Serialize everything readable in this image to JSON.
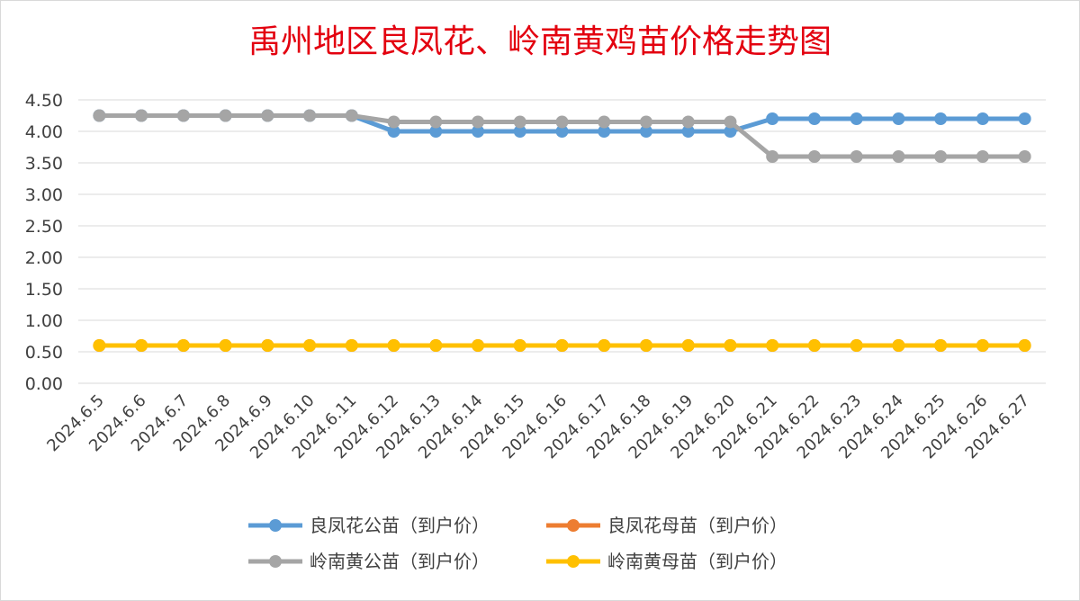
{
  "chart_data": {
    "type": "line",
    "title": "禹州地区良凤花、岭南黄鸡苗价格走势图",
    "categories": [
      "2024.6.5",
      "2024.6.6",
      "2024.6.7",
      "2024.6.8",
      "2024.6.9",
      "2024.6.10",
      "2024.6.11",
      "2024.6.12",
      "2024.6.13",
      "2024.6.14",
      "2024.6.15",
      "2024.6.16",
      "2024.6.17",
      "2024.6.18",
      "2024.6.19",
      "2024.6.20",
      "2024.6.21",
      "2024.6.22",
      "2024.6.23",
      "2024.6.24",
      "2024.6.25",
      "2024.6.26",
      "2024.6.27"
    ],
    "ylim": [
      0,
      4.5
    ],
    "yticks": [
      "0.00",
      "0.50",
      "1.00",
      "1.50",
      "2.00",
      "2.50",
      "3.00",
      "3.50",
      "4.00",
      "4.50"
    ],
    "grid": true,
    "legend_position": "bottom",
    "series": [
      {
        "name": "良凤花公苗（到户价）",
        "color": "#5b9bd5",
        "values": [
          4.25,
          4.25,
          4.25,
          4.25,
          4.25,
          4.25,
          4.25,
          4.0,
          4.0,
          4.0,
          4.0,
          4.0,
          4.0,
          4.0,
          4.0,
          4.0,
          4.2,
          4.2,
          4.2,
          4.2,
          4.2,
          4.2,
          4.2
        ]
      },
      {
        "name": "良凤花母苗（到户价）",
        "color": "#ed7d31",
        "values": [
          0.6,
          0.6,
          0.6,
          0.6,
          0.6,
          0.6,
          0.6,
          0.6,
          0.6,
          0.6,
          0.6,
          0.6,
          0.6,
          0.6,
          0.6,
          0.6,
          0.6,
          0.6,
          0.6,
          0.6,
          0.6,
          0.6,
          0.6
        ]
      },
      {
        "name": "岭南黄公苗（到户价）",
        "color": "#a5a5a5",
        "values": [
          4.25,
          4.25,
          4.25,
          4.25,
          4.25,
          4.25,
          4.25,
          4.15,
          4.15,
          4.15,
          4.15,
          4.15,
          4.15,
          4.15,
          4.15,
          4.15,
          3.6,
          3.6,
          3.6,
          3.6,
          3.6,
          3.6,
          3.6
        ]
      },
      {
        "name": "岭南黄母苗（到户价）",
        "color": "#ffc000",
        "values": [
          0.6,
          0.6,
          0.6,
          0.6,
          0.6,
          0.6,
          0.6,
          0.6,
          0.6,
          0.6,
          0.6,
          0.6,
          0.6,
          0.6,
          0.6,
          0.6,
          0.6,
          0.6,
          0.6,
          0.6,
          0.6,
          0.6,
          0.6
        ]
      }
    ]
  }
}
